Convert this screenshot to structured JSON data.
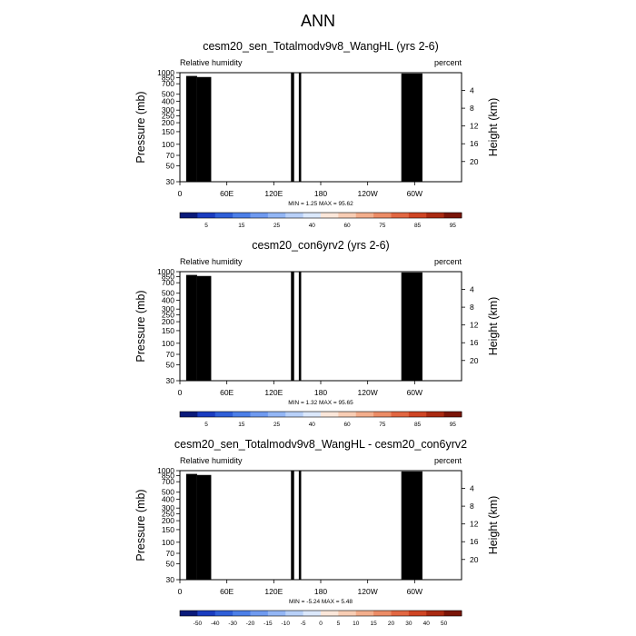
{
  "figure_title": "ANN",
  "chart_data": [
    {
      "type": "heatmap",
      "title": "cesm20_sen_Totalmodv9v8_WangHL (yrs 2-6)",
      "left_label": "Relative humidity",
      "right_label": "percent",
      "xlabel": "",
      "ylabel": "Pressure (mb)",
      "ylabel_right": "Height (km)",
      "x_ticks": [
        "0",
        "60E",
        "120E",
        "180",
        "120W",
        "60W"
      ],
      "x_tick_values": [
        0,
        60,
        120,
        180,
        240,
        300
      ],
      "xlim": [
        0,
        360
      ],
      "y_ticks": [
        "1000",
        "850",
        "700",
        "500",
        "400",
        "300",
        "250",
        "200",
        "150",
        "100",
        "70",
        "50",
        "30"
      ],
      "y_tick_values": [
        1000,
        850,
        700,
        500,
        400,
        300,
        250,
        200,
        150,
        100,
        70,
        50,
        30
      ],
      "ylim": [
        1000,
        30
      ],
      "height_ticks": [
        "4",
        "8",
        "12",
        "16",
        "20"
      ],
      "height_tick_values": [
        4,
        8,
        12,
        16,
        20
      ],
      "stats": "MIN = 1.25 MAX = 95.62",
      "min": 1.25,
      "max": 95.62,
      "colorbar_labels": [
        "5",
        "15",
        "25",
        "40",
        "60",
        "75",
        "85",
        "95"
      ],
      "levels": [
        5,
        10,
        15,
        20,
        25,
        30,
        40,
        50,
        60,
        70,
        75,
        80,
        85,
        90,
        95
      ],
      "colors": [
        "#0a1a7a",
        "#1a3cc0",
        "#2f5fd8",
        "#4c7fe8",
        "#6f9af0",
        "#93b6f5",
        "#b8d0f8",
        "#dbe8fb",
        "#fbe7da",
        "#f8cdb4",
        "#f3ae8c",
        "#ec8c66",
        "#e26742",
        "#cf4524",
        "#aa2a12",
        "#7a1508"
      ]
    },
    {
      "type": "heatmap",
      "title": "cesm20_con6yrv2 (yrs 2-6)",
      "left_label": "Relative humidity",
      "right_label": "percent",
      "xlabel": "",
      "ylabel": "Pressure (mb)",
      "ylabel_right": "Height (km)",
      "x_ticks": [
        "0",
        "60E",
        "120E",
        "180",
        "120W",
        "60W"
      ],
      "x_tick_values": [
        0,
        60,
        120,
        180,
        240,
        300
      ],
      "xlim": [
        0,
        360
      ],
      "y_ticks": [
        "1000",
        "850",
        "700",
        "500",
        "400",
        "300",
        "250",
        "200",
        "150",
        "100",
        "70",
        "50",
        "30"
      ],
      "y_tick_values": [
        1000,
        850,
        700,
        500,
        400,
        300,
        250,
        200,
        150,
        100,
        70,
        50,
        30
      ],
      "ylim": [
        1000,
        30
      ],
      "height_ticks": [
        "4",
        "8",
        "12",
        "16",
        "20"
      ],
      "height_tick_values": [
        4,
        8,
        12,
        16,
        20
      ],
      "stats": "MIN = 1.32 MAX = 95.65",
      "min": 1.32,
      "max": 95.65,
      "colorbar_labels": [
        "5",
        "15",
        "25",
        "40",
        "60",
        "75",
        "85",
        "95"
      ],
      "levels": [
        5,
        10,
        15,
        20,
        25,
        30,
        40,
        50,
        60,
        70,
        75,
        80,
        85,
        90,
        95
      ],
      "colors": [
        "#0a1a7a",
        "#1a3cc0",
        "#2f5fd8",
        "#4c7fe8",
        "#6f9af0",
        "#93b6f5",
        "#b8d0f8",
        "#dbe8fb",
        "#fbe7da",
        "#f8cdb4",
        "#f3ae8c",
        "#ec8c66",
        "#e26742",
        "#cf4524",
        "#aa2a12",
        "#7a1508"
      ]
    },
    {
      "type": "heatmap",
      "title": "cesm20_sen_Totalmodv9v8_WangHL - cesm20_con6yrv2",
      "left_label": "Relative humidity",
      "right_label": "percent",
      "xlabel": "",
      "ylabel": "Pressure (mb)",
      "ylabel_right": "Height (km)",
      "x_ticks": [
        "0",
        "60E",
        "120E",
        "180",
        "120W",
        "60W"
      ],
      "x_tick_values": [
        0,
        60,
        120,
        180,
        240,
        300
      ],
      "xlim": [
        0,
        360
      ],
      "y_ticks": [
        "1000",
        "850",
        "700",
        "500",
        "400",
        "300",
        "250",
        "200",
        "150",
        "100",
        "70",
        "50",
        "30"
      ],
      "y_tick_values": [
        1000,
        850,
        700,
        500,
        400,
        300,
        250,
        200,
        150,
        100,
        70,
        50,
        30
      ],
      "ylim": [
        1000,
        30
      ],
      "height_ticks": [
        "4",
        "8",
        "12",
        "16",
        "20"
      ],
      "height_tick_values": [
        4,
        8,
        12,
        16,
        20
      ],
      "stats": "MIN = -5.24 MAX = 5.48",
      "min": -5.24,
      "max": 5.48,
      "colorbar_labels": [
        "-50",
        "-40",
        "-30",
        "-20",
        "-15",
        "-10",
        "-5",
        "0",
        "5",
        "10",
        "15",
        "20",
        "30",
        "40",
        "50"
      ],
      "levels": [
        -50,
        -40,
        -30,
        -20,
        -15,
        -10,
        -5,
        0,
        5,
        10,
        15,
        20,
        30,
        40,
        50
      ],
      "colors": [
        "#0a1a7a",
        "#1a3cc0",
        "#2f5fd8",
        "#4c7fe8",
        "#6f9af0",
        "#93b6f5",
        "#b8d0f8",
        "#dbe8fb",
        "#fbe7da",
        "#f8cdb4",
        "#f3ae8c",
        "#ec8c66",
        "#e26742",
        "#cf4524",
        "#aa2a12",
        "#7a1508"
      ]
    }
  ]
}
